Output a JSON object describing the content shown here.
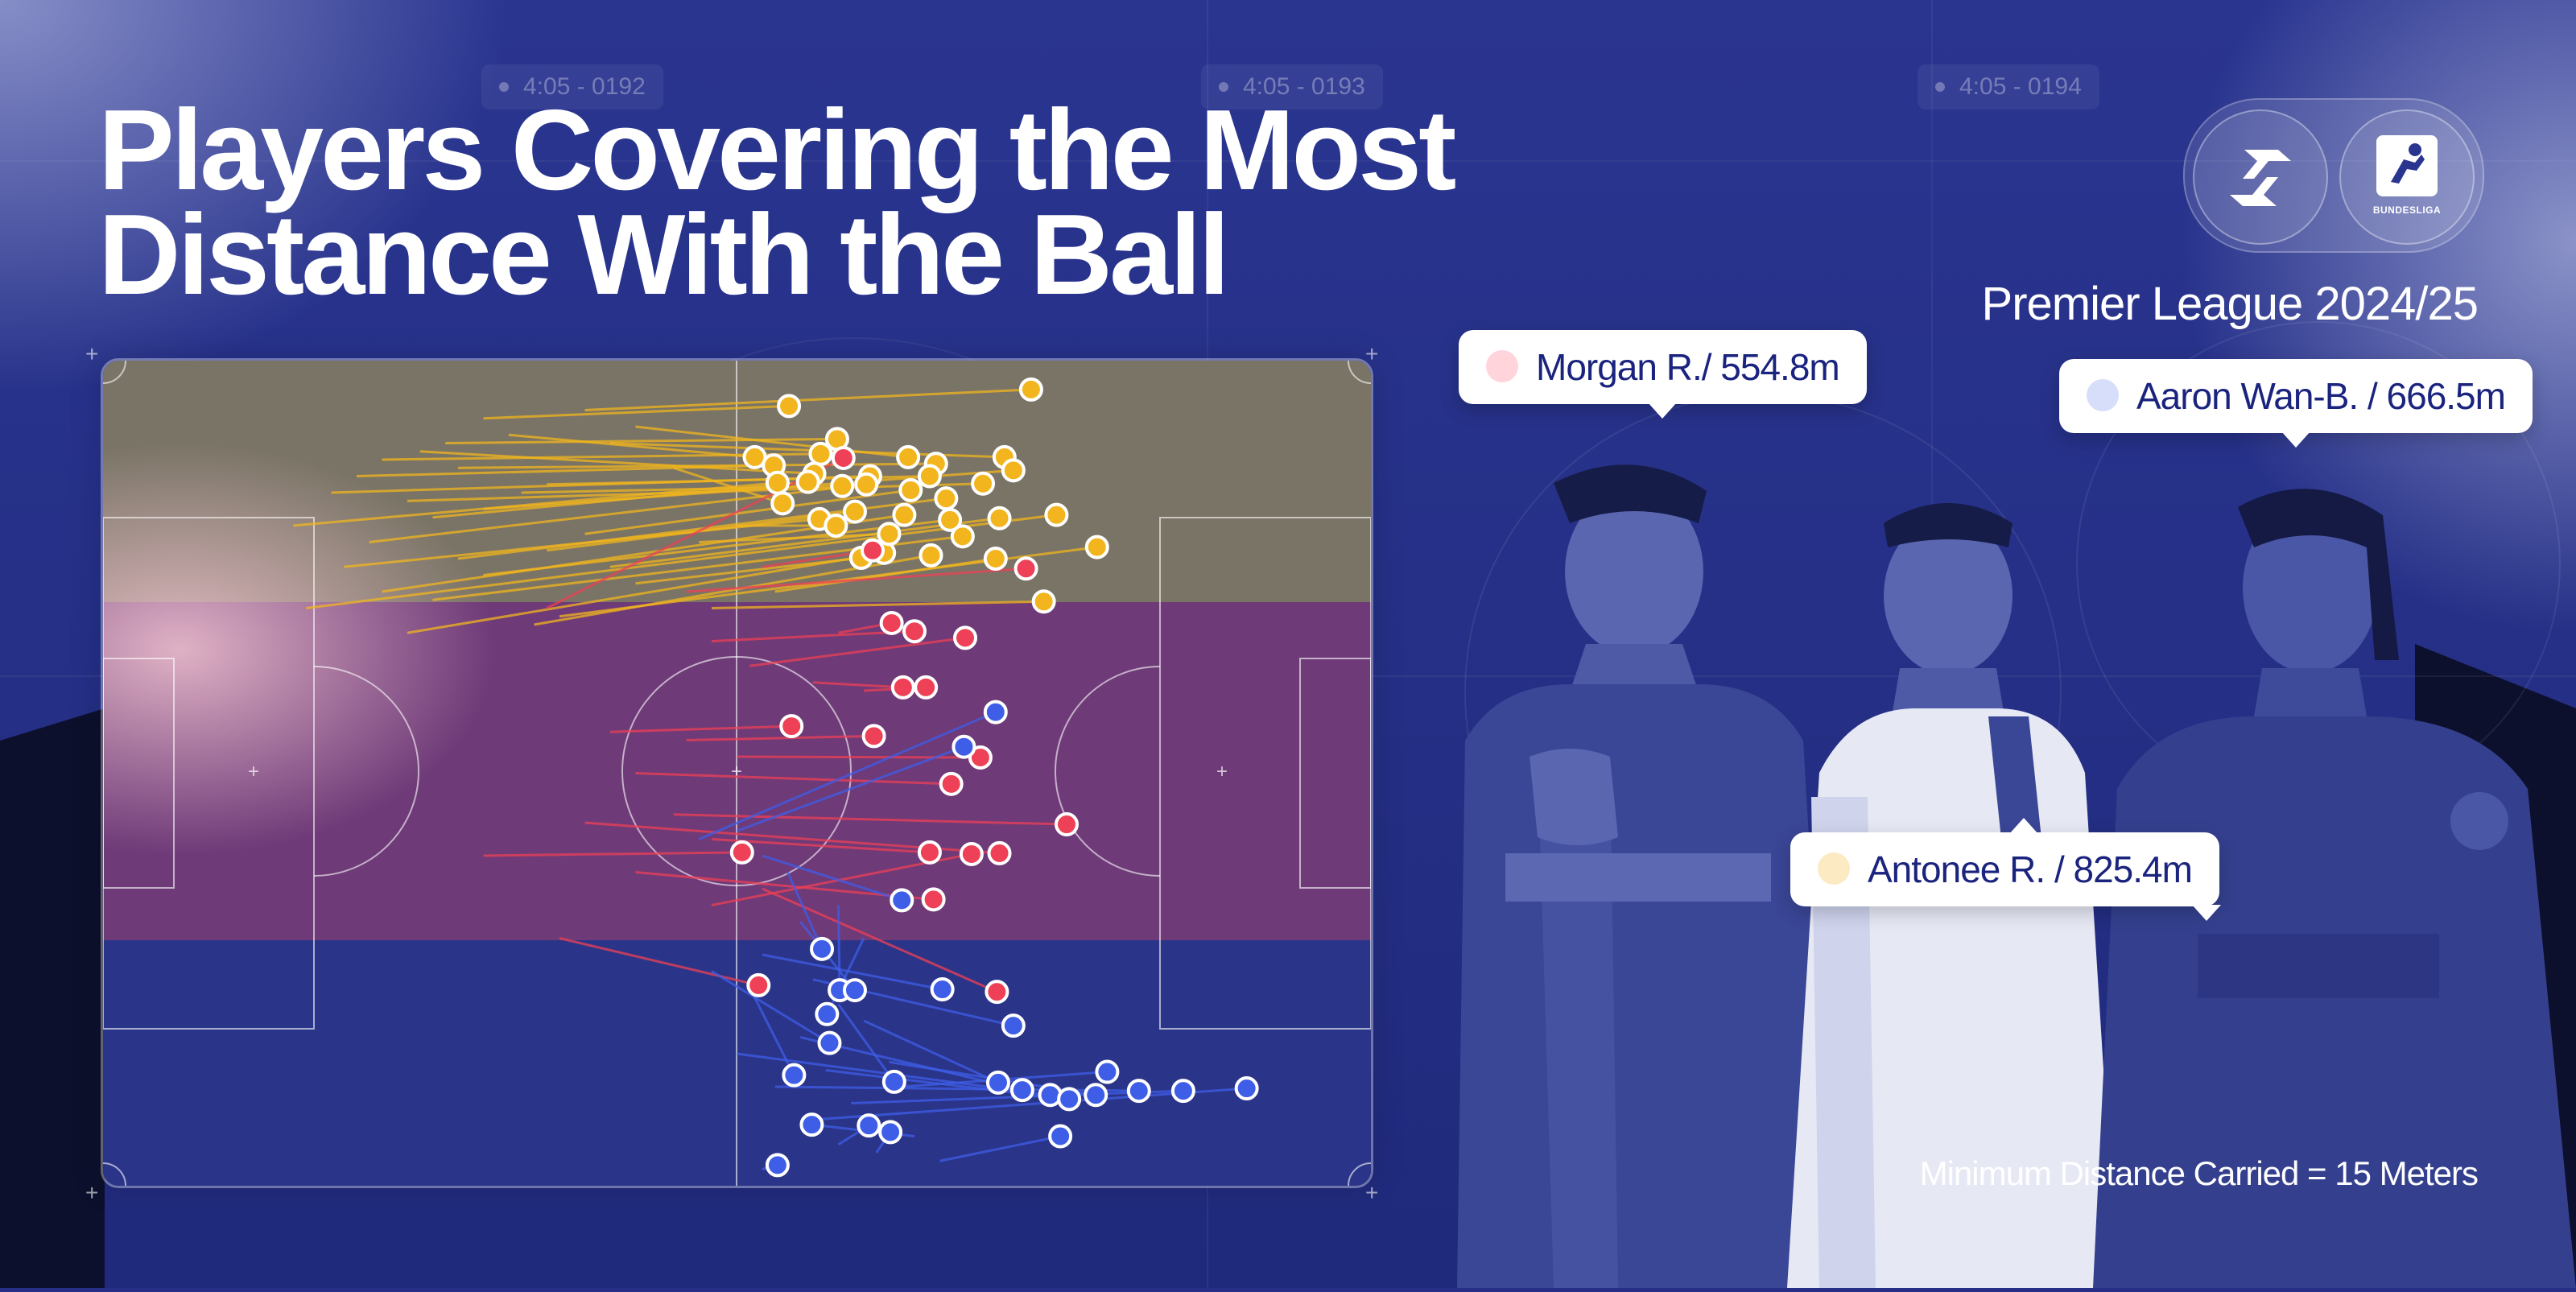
{
  "title": "Players Covering the Most Distance With the Ball",
  "league": "Premier League 2024/25",
  "footnote": "Minimum Distance Carried = 15 Meters",
  "timestamps": [
    "4:05 - 0192",
    "4:05 - 0193",
    "4:05 - 0194"
  ],
  "logos": {
    "bundesliga_text": "BUNDESLIGA"
  },
  "colors": {
    "background": "#252f86",
    "red": "#ee4056",
    "yellow": "#f2b51e",
    "blue": "#3f5ee8",
    "zone_top": "#7a7466",
    "zone_mid": "#6e3a78",
    "zone_bottom": "#2a3488"
  },
  "players": [
    {
      "name": "Morgan R.",
      "distance": "554.8m",
      "label": "Morgan R./ 554.8m",
      "color": "#ee4056"
    },
    {
      "name": "Aaron Wan-B.",
      "distance": "666.5m",
      "label": "Aaron Wan-B. / 666.5m",
      "color": "#3f5ee8"
    },
    {
      "name": "Antonee R.",
      "distance": "825.4m",
      "label": "Antonee R. / 825.4m",
      "color": "#f2b51e"
    }
  ],
  "carries": {
    "yellow": [
      [
        0.3,
        0.07,
        0.541,
        0.055
      ],
      [
        0.38,
        0.06,
        0.732,
        0.035
      ],
      [
        0.27,
        0.1,
        0.579,
        0.095
      ],
      [
        0.22,
        0.12,
        0.566,
        0.113
      ],
      [
        0.32,
        0.09,
        0.514,
        0.117
      ],
      [
        0.2,
        0.14,
        0.529,
        0.127
      ],
      [
        0.25,
        0.11,
        0.561,
        0.137
      ],
      [
        0.18,
        0.16,
        0.605,
        0.14
      ],
      [
        0.42,
        0.08,
        0.635,
        0.117
      ],
      [
        0.28,
        0.13,
        0.657,
        0.125
      ],
      [
        0.35,
        0.15,
        0.652,
        0.14
      ],
      [
        0.24,
        0.17,
        0.694,
        0.149
      ],
      [
        0.4,
        0.1,
        0.711,
        0.117
      ],
      [
        0.3,
        0.18,
        0.718,
        0.133
      ],
      [
        0.15,
        0.2,
        0.532,
        0.148
      ],
      [
        0.26,
        0.19,
        0.556,
        0.147
      ],
      [
        0.33,
        0.16,
        0.583,
        0.152
      ],
      [
        0.21,
        0.22,
        0.602,
        0.15
      ],
      [
        0.38,
        0.21,
        0.637,
        0.157
      ],
      [
        0.28,
        0.24,
        0.665,
        0.167
      ],
      [
        0.45,
        0.13,
        0.536,
        0.173
      ],
      [
        0.19,
        0.25,
        0.565,
        0.192
      ],
      [
        0.35,
        0.23,
        0.593,
        0.183
      ],
      [
        0.22,
        0.28,
        0.632,
        0.187
      ],
      [
        0.3,
        0.26,
        0.668,
        0.193
      ],
      [
        0.4,
        0.25,
        0.707,
        0.191
      ],
      [
        0.16,
        0.3,
        0.752,
        0.187
      ],
      [
        0.26,
        0.29,
        0.678,
        0.213
      ],
      [
        0.34,
        0.32,
        0.653,
        0.236
      ],
      [
        0.24,
        0.33,
        0.616,
        0.233
      ],
      [
        0.42,
        0.27,
        0.598,
        0.239
      ],
      [
        0.36,
        0.31,
        0.784,
        0.226
      ],
      [
        0.48,
        0.3,
        0.742,
        0.292
      ],
      [
        0.5,
        0.2,
        0.578,
        0.2
      ],
      [
        0.53,
        0.28,
        0.704,
        0.24
      ],
      [
        0.47,
        0.22,
        0.62,
        0.21
      ]
    ],
    "red": [
      [
        0.35,
        0.3,
        0.584,
        0.118
      ],
      [
        0.52,
        0.25,
        0.607,
        0.23
      ],
      [
        0.46,
        0.28,
        0.728,
        0.252
      ],
      [
        0.58,
        0.33,
        0.622,
        0.318
      ],
      [
        0.48,
        0.34,
        0.64,
        0.328
      ],
      [
        0.51,
        0.37,
        0.68,
        0.336
      ],
      [
        0.56,
        0.39,
        0.631,
        0.396
      ],
      [
        0.6,
        0.4,
        0.649,
        0.396
      ],
      [
        0.4,
        0.45,
        0.543,
        0.443
      ],
      [
        0.46,
        0.46,
        0.608,
        0.455
      ],
      [
        0.5,
        0.48,
        0.692,
        0.481
      ],
      [
        0.42,
        0.5,
        0.669,
        0.513
      ],
      [
        0.45,
        0.55,
        0.76,
        0.562
      ],
      [
        0.38,
        0.56,
        0.707,
        0.597
      ],
      [
        0.3,
        0.6,
        0.504,
        0.596
      ],
      [
        0.48,
        0.58,
        0.652,
        0.596
      ],
      [
        0.42,
        0.62,
        0.655,
        0.653
      ],
      [
        0.36,
        0.7,
        0.517,
        0.757
      ],
      [
        0.52,
        0.64,
        0.705,
        0.765
      ],
      [
        0.48,
        0.66,
        0.685,
        0.598
      ]
    ],
    "blue": [
      [
        0.47,
        0.58,
        0.704,
        0.426
      ],
      [
        0.5,
        0.57,
        0.679,
        0.468
      ],
      [
        0.52,
        0.6,
        0.63,
        0.654
      ],
      [
        0.54,
        0.62,
        0.567,
        0.713
      ],
      [
        0.58,
        0.66,
        0.581,
        0.763
      ],
      [
        0.55,
        0.68,
        0.593,
        0.763
      ],
      [
        0.6,
        0.7,
        0.571,
        0.792
      ],
      [
        0.52,
        0.72,
        0.662,
        0.762
      ],
      [
        0.48,
        0.74,
        0.573,
        0.827
      ],
      [
        0.56,
        0.75,
        0.718,
        0.806
      ],
      [
        0.51,
        0.76,
        0.545,
        0.866
      ],
      [
        0.58,
        0.78,
        0.624,
        0.874
      ],
      [
        0.6,
        0.8,
        0.706,
        0.875
      ],
      [
        0.55,
        0.82,
        0.725,
        0.884
      ],
      [
        0.5,
        0.84,
        0.747,
        0.89
      ],
      [
        0.62,
        0.85,
        0.783,
        0.89
      ],
      [
        0.57,
        0.86,
        0.762,
        0.895
      ],
      [
        0.53,
        0.88,
        0.817,
        0.885
      ],
      [
        0.59,
        0.9,
        0.852,
        0.885
      ],
      [
        0.56,
        0.92,
        0.902,
        0.882
      ],
      [
        0.64,
        0.94,
        0.559,
        0.926
      ],
      [
        0.58,
        0.95,
        0.604,
        0.927
      ],
      [
        0.61,
        0.96,
        0.621,
        0.935
      ],
      [
        0.66,
        0.97,
        0.755,
        0.94
      ],
      [
        0.52,
        0.98,
        0.532,
        0.975
      ],
      [
        0.63,
        0.88,
        0.792,
        0.862
      ]
    ]
  }
}
